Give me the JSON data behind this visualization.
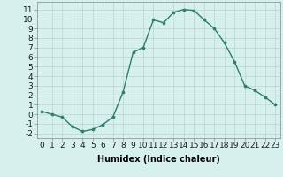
{
  "xlabel": "Humidex (Indice chaleur)",
  "x": [
    0,
    1,
    2,
    3,
    4,
    5,
    6,
    7,
    8,
    9,
    10,
    11,
    12,
    13,
    14,
    15,
    16,
    17,
    18,
    19,
    20,
    21,
    22,
    23
  ],
  "y": [
    0.3,
    0.0,
    -0.3,
    -1.3,
    -1.8,
    -1.6,
    -1.1,
    -0.3,
    2.3,
    6.5,
    7.0,
    9.9,
    9.6,
    10.7,
    11.0,
    10.9,
    9.9,
    9.0,
    7.5,
    5.5,
    3.0,
    2.5,
    1.8,
    1.0
  ],
  "line_color": "#2e7d6e",
  "marker": "o",
  "marker_size": 2.2,
  "bg_color": "#d6f0ee",
  "grid_color": "#c0d8d5",
  "ylim": [
    -2.5,
    11.8
  ],
  "yticks": [
    -2,
    -1,
    0,
    1,
    2,
    3,
    4,
    5,
    6,
    7,
    8,
    9,
    10,
    11
  ],
  "xlim": [
    -0.5,
    23.5
  ],
  "label_fontsize": 7,
  "tick_fontsize": 6.5
}
